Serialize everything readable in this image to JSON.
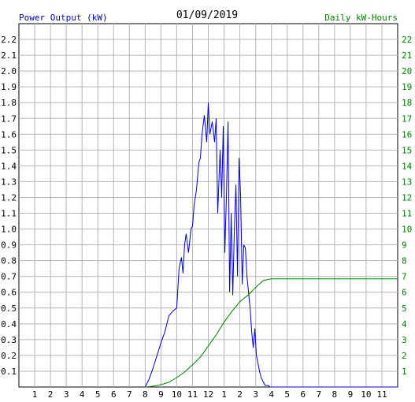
{
  "header": {
    "left_title": "Power Output (kW)",
    "date": "01/09/2019",
    "right_title": "Daily kW-Hours"
  },
  "chart_data": {
    "type": "line",
    "title": "01/09/2019",
    "xlabel": "",
    "ylabel_left": "Power Output (kW)",
    "ylabel_right": "Daily kW-Hours",
    "x_tick_labels": [
      "1",
      "2",
      "3",
      "4",
      "5",
      "6",
      "7",
      "8",
      "9",
      "10",
      "11",
      "12",
      "1",
      "2",
      "3",
      "4",
      "5",
      "6",
      "7",
      "8",
      "9",
      "10",
      "11"
    ],
    "y_left_ticks": [
      "0.1",
      "0.2",
      "0.3",
      "0.4",
      "0.5",
      "0.6",
      "0.7",
      "0.8",
      "0.9",
      "1.0",
      "1.1",
      "1.2",
      "1.3",
      "1.4",
      "1.5",
      "1.6",
      "1.7",
      "1.8",
      "1.9",
      "2.0",
      "2.1",
      "2.2"
    ],
    "y_right_ticks": [
      "1",
      "2",
      "3",
      "4",
      "5",
      "6",
      "7",
      "8",
      "9",
      "10",
      "11",
      "12",
      "13",
      "14",
      "15",
      "16",
      "17",
      "18",
      "19",
      "20",
      "21",
      "22"
    ],
    "xlim": [
      0,
      24
    ],
    "ylim_left": [
      0,
      2.3
    ],
    "ylim_right": [
      0,
      23
    ],
    "grid": true,
    "colors": {
      "power": "#0000cc",
      "energy": "#008000",
      "grid": "#b4b4b4",
      "left_axis_text": "#0000cc",
      "right_axis_text": "#008000"
    },
    "series": [
      {
        "name": "Power Output (kW)",
        "axis": "left",
        "color": "#0000cc",
        "x": [
          8.0,
          8.25,
          8.5,
          8.75,
          9.0,
          9.25,
          9.5,
          9.75,
          10.0,
          10.15,
          10.3,
          10.4,
          10.5,
          10.6,
          10.75,
          10.9,
          11.0,
          11.1,
          11.25,
          11.4,
          11.5,
          11.6,
          11.75,
          11.9,
          12.0,
          12.1,
          12.25,
          12.4,
          12.5,
          12.6,
          12.75,
          12.85,
          12.95,
          13.05,
          13.15,
          13.25,
          13.35,
          13.45,
          13.55,
          13.65,
          13.75,
          13.85,
          13.95,
          14.05,
          14.15,
          14.25,
          14.35,
          14.45,
          14.55,
          14.65,
          14.75,
          14.85,
          14.95,
          15.05,
          15.15,
          15.25,
          15.35,
          15.5,
          15.6,
          15.7,
          15.8,
          15.9,
          16.0,
          16.1,
          16.2,
          16.3,
          16.4,
          16.55,
          16.7,
          16.85,
          17.0,
          17.3,
          17.7,
          18.0,
          24.0
        ],
        "y": [
          0.0,
          0.05,
          0.12,
          0.2,
          0.28,
          0.35,
          0.45,
          0.48,
          0.5,
          0.75,
          0.82,
          0.72,
          0.9,
          0.97,
          0.85,
          1.0,
          1.02,
          1.15,
          1.25,
          1.42,
          1.45,
          1.6,
          1.72,
          1.55,
          1.8,
          1.6,
          1.68,
          1.55,
          1.7,
          1.1,
          1.5,
          1.2,
          1.65,
          0.85,
          1.2,
          1.68,
          0.6,
          1.1,
          0.58,
          1.0,
          1.28,
          0.7,
          1.45,
          1.2,
          0.65,
          0.9,
          0.88,
          0.7,
          0.6,
          0.5,
          0.35,
          0.25,
          0.37,
          0.2,
          0.15,
          0.1,
          0.06,
          0.03,
          0.01,
          0.01,
          0.01,
          0.0,
          0.0,
          0.0,
          0.0,
          0.0,
          0.0,
          0.0,
          0.0,
          0.0,
          0.0,
          0.0,
          0.0,
          0.0,
          0.0
        ]
      },
      {
        "name": "Daily kW-Hours",
        "axis": "right",
        "color": "#008000",
        "x": [
          8.0,
          8.5,
          9.0,
          9.5,
          10.0,
          10.5,
          11.0,
          11.5,
          12.0,
          12.5,
          13.0,
          13.5,
          14.0,
          14.5,
          15.0,
          15.5,
          16.0,
          16.5,
          17.0,
          18.0,
          20.0,
          22.0,
          24.0
        ],
        "y": [
          0.0,
          0.05,
          0.15,
          0.3,
          0.6,
          0.95,
          1.4,
          1.9,
          2.6,
          3.3,
          4.1,
          4.8,
          5.4,
          5.8,
          6.3,
          6.75,
          6.85,
          6.85,
          6.85,
          6.85,
          6.85,
          6.85,
          6.85
        ]
      }
    ]
  }
}
